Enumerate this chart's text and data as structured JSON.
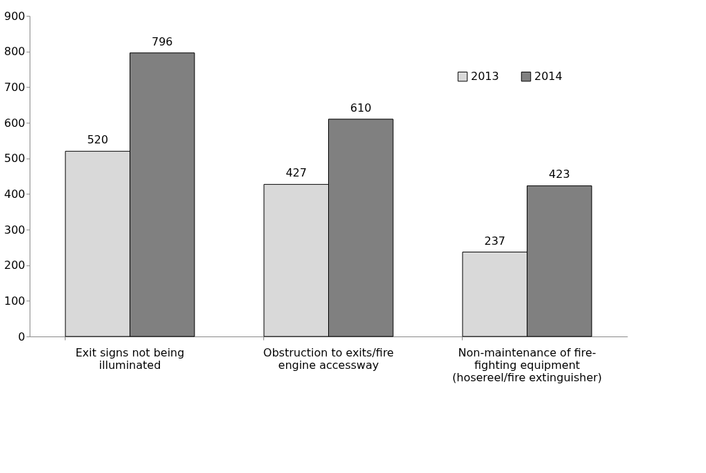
{
  "chart_data": {
    "type": "bar",
    "categories": [
      "Exit signs not being illuminated",
      "Obstruction to exits/fire engine accessway",
      "Non-maintenance of fire-fighting equipment (hosereel/fire extinguisher)"
    ],
    "series": [
      {
        "name": "2013",
        "color": "#d9d9d9",
        "values": [
          520,
          427,
          237
        ]
      },
      {
        "name": "2014",
        "color": "#808080",
        "values": [
          796,
          610,
          423
        ]
      }
    ],
    "ylim": [
      0,
      900
    ],
    "yticks": [
      0,
      100,
      200,
      300,
      400,
      500,
      600,
      700,
      800,
      900
    ],
    "grid": false,
    "legend": "top right",
    "data_labels": true
  }
}
